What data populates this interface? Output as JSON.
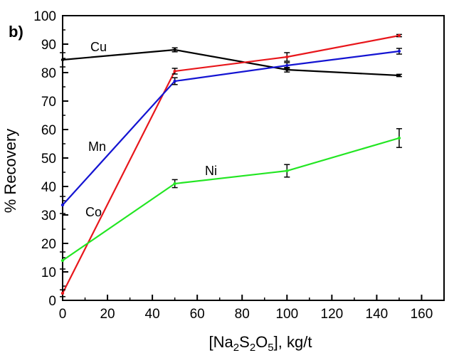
{
  "chart_data": {
    "type": "line",
    "panel_label": "b)",
    "title": "",
    "xlabel": {
      "parts": [
        "[Na",
        "2",
        "S",
        "2",
        "O",
        "5",
        "], kg/t"
      ]
    },
    "ylabel": "% Recovery",
    "xlim": [
      0,
      170
    ],
    "ylim": [
      0,
      100
    ],
    "xticks": [
      0,
      20,
      40,
      60,
      80,
      100,
      120,
      140,
      160
    ],
    "yticks": [
      0,
      10,
      20,
      30,
      40,
      50,
      60,
      70,
      80,
      90,
      100
    ],
    "x": [
      0,
      50,
      100,
      150
    ],
    "series": [
      {
        "name": "Cu",
        "color": "#000000",
        "values": [
          84.5,
          88,
          81,
          79
        ],
        "errors": [
          2.5,
          0.7,
          0.8,
          0.4
        ]
      },
      {
        "name": "Co",
        "color": "#e8161b",
        "values": [
          2.5,
          80.5,
          85.5,
          93
        ],
        "errors": [
          1.2,
          1.0,
          1.5,
          0.4
        ]
      },
      {
        "name": "Mn",
        "color": "#1414d2",
        "values": [
          33.5,
          77,
          82.5,
          87.5
        ],
        "errors": [
          3.0,
          1.2,
          1.0,
          1.0
        ]
      },
      {
        "name": "Ni",
        "color": "#22e622",
        "values": [
          14,
          41,
          45.5,
          57
        ],
        "errors": [
          3.0,
          1.4,
          2.2,
          3.3
        ]
      }
    ]
  }
}
